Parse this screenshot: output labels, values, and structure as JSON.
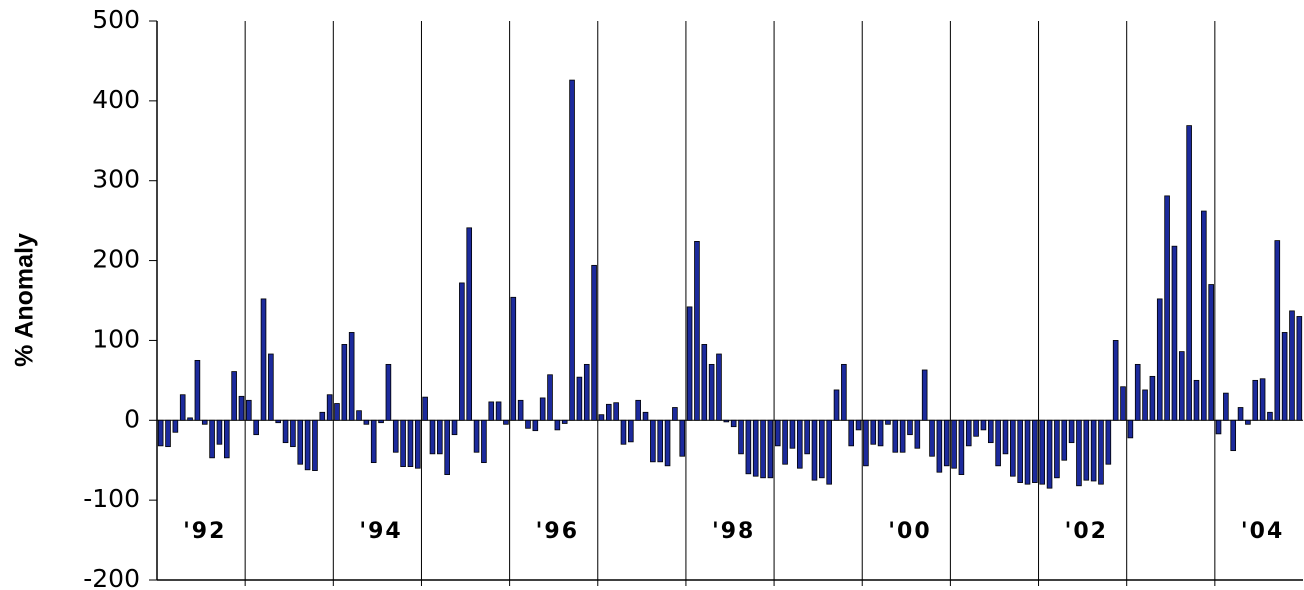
{
  "chart_data": {
    "type": "bar",
    "ylabel": "% Anomaly",
    "categories": [
      null,
      null,
      null,
      null,
      null,
      null,
      "'92",
      null,
      null,
      null,
      null,
      null,
      null,
      null,
      null,
      null,
      null,
      null,
      null,
      null,
      null,
      null,
      null,
      null,
      null,
      null,
      null,
      null,
      null,
      null,
      "'94",
      null,
      null,
      null,
      null,
      null,
      null,
      null,
      null,
      null,
      null,
      null,
      null,
      null,
      null,
      null,
      null,
      null,
      null,
      null,
      null,
      null,
      null,
      null,
      "'96",
      null,
      null,
      null,
      null,
      null,
      null,
      null,
      null,
      null,
      null,
      null,
      null,
      null,
      null,
      null,
      null,
      null,
      null,
      null,
      null,
      null,
      null,
      null,
      "'98",
      null,
      null,
      null,
      null,
      null,
      null,
      null,
      null,
      null,
      null,
      null,
      null,
      null,
      null,
      null,
      null,
      null,
      null,
      null,
      null,
      null,
      null,
      null,
      "'00",
      null,
      null,
      null,
      null,
      null,
      null,
      null,
      null,
      null,
      null,
      null,
      null,
      null,
      null,
      null,
      null,
      null,
      null,
      null,
      null,
      null,
      null,
      null,
      "'02",
      null,
      null,
      null,
      null,
      null,
      null,
      null,
      null,
      null,
      null,
      null,
      null,
      null,
      null,
      null,
      null,
      null,
      null,
      null,
      null,
      null,
      null,
      null,
      "'04",
      null,
      null,
      null,
      null,
      null
    ],
    "values": [
      -32,
      -33,
      -15,
      32,
      3,
      75,
      -5,
      -47,
      -30,
      -47,
      61,
      30,
      25,
      -18,
      152,
      83,
      -3,
      -28,
      -33,
      -55,
      -62,
      -63,
      10,
      32,
      21,
      95,
      110,
      12,
      -5,
      -53,
      -3,
      70,
      -40,
      -58,
      -58,
      -60,
      29,
      -42,
      -42,
      -68,
      -18,
      172,
      241,
      -40,
      -53,
      23,
      23,
      -5,
      154,
      25,
      -10,
      -13,
      28,
      57,
      -12,
      -4,
      426,
      54,
      70,
      194,
      7,
      20,
      22,
      -30,
      -27,
      25,
      10,
      -52,
      -52,
      -57,
      16,
      -45,
      142,
      224,
      95,
      70,
      83,
      -2,
      -8,
      -42,
      -67,
      -70,
      -72,
      -72,
      -32,
      -55,
      -35,
      -60,
      -42,
      -75,
      -72,
      -80,
      38,
      70,
      -32,
      -12,
      -57,
      -30,
      -32,
      -5,
      -40,
      -40,
      -18,
      -35,
      63,
      -45,
      -65,
      -57,
      -60,
      -68,
      -32,
      -20,
      -12,
      -28,
      -57,
      -42,
      -70,
      -78,
      -80,
      -78,
      -80,
      -85,
      -72,
      -50,
      -28,
      -82,
      -75,
      -76,
      -80,
      -55,
      100,
      42,
      -22,
      70,
      38,
      55,
      152,
      281,
      218,
      86,
      369,
      50,
      262,
      170,
      -17,
      34,
      -38,
      16,
      -5,
      50,
      52,
      10,
      225,
      110,
      137,
      130
    ],
    "color": "#1c2a9c",
    "ylim": [
      -200,
      500
    ],
    "yticks": [
      -200,
      -100,
      0,
      100,
      200,
      300,
      400,
      500
    ]
  }
}
